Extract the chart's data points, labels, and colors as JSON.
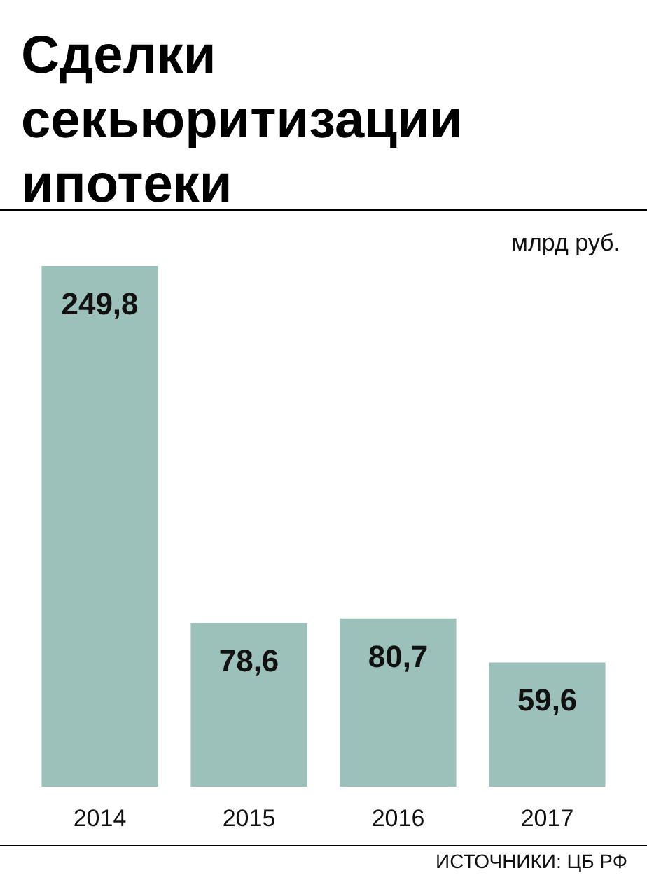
{
  "chart_data": {
    "type": "bar",
    "title": "Сделки\nсекьюритизации\nипотеки",
    "subtitle": "млрд руб.",
    "categories": [
      "2014",
      "2015",
      "2016",
      "2017"
    ],
    "values": [
      249.8,
      78.6,
      80.7,
      59.6
    ],
    "value_labels": [
      "249,8",
      "78,6",
      "80,7",
      "59,6"
    ],
    "color": "#9cc0ba",
    "annotations": [
      "ИСТОЧНИКИ: ЦБ РФ"
    ]
  }
}
